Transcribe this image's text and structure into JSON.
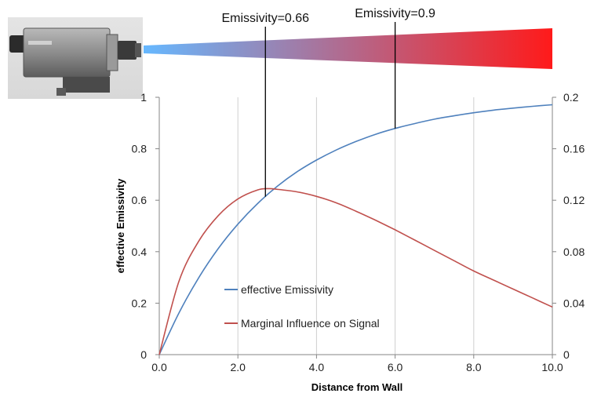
{
  "chart_data": {
    "type": "line",
    "title": "",
    "xlabel": "Distance from Wall",
    "ylabel": "effective Emissivity",
    "y2label": "",
    "xlim": [
      0,
      10
    ],
    "ylim": [
      0,
      1
    ],
    "y2lim": [
      0,
      0.2
    ],
    "x_ticks": [
      "0.0",
      "2.0",
      "4.0",
      "6.0",
      "8.0",
      "10.0"
    ],
    "y_ticks": [
      "0",
      "0.2",
      "0.4",
      "0.6",
      "0.8",
      "1"
    ],
    "y2_ticks": [
      "0",
      "0.04",
      "0.08",
      "0.12",
      "0.16",
      "0.2"
    ],
    "grid": "vertical",
    "legend_position": "center-left",
    "series": [
      {
        "name": "effective Emissivity",
        "axis": "left",
        "color": "#4f81bd",
        "x": [
          0,
          0.5,
          1,
          1.5,
          2,
          2.5,
          3,
          3.5,
          4,
          4.5,
          5,
          5.5,
          6,
          6.5,
          7,
          7.5,
          8,
          8.5,
          9,
          9.5,
          10
        ],
        "y": [
          0,
          0.162,
          0.298,
          0.412,
          0.507,
          0.587,
          0.654,
          0.71,
          0.756,
          0.795,
          0.828,
          0.856,
          0.879,
          0.898,
          0.915,
          0.928,
          0.94,
          0.95,
          0.958,
          0.965,
          0.971
        ]
      },
      {
        "name": "Marginal Influence on Signal",
        "axis": "right",
        "color": "#c0504d",
        "x": [
          0,
          0.5,
          1,
          1.5,
          2,
          2.5,
          2.8,
          3,
          3.5,
          4,
          4.5,
          5,
          5.5,
          6,
          6.5,
          7,
          7.5,
          8,
          8.5,
          9,
          9.5,
          10
        ],
        "y": [
          0,
          0.057,
          0.088,
          0.108,
          0.121,
          0.128,
          0.129,
          0.1285,
          0.1265,
          0.123,
          0.118,
          0.1115,
          0.1045,
          0.097,
          0.089,
          0.081,
          0.073,
          0.065,
          0.058,
          0.051,
          0.044,
          0.037
        ]
      }
    ],
    "annotations": [
      {
        "text": "Emissivity=0.66",
        "x": 2.7
      },
      {
        "text": "Emissivity=0.9",
        "x": 6.0
      }
    ],
    "gradient_bar": {
      "color_start": "#66b8ff",
      "color_end": "#ff1a1a"
    },
    "image": "pyrometer-camera"
  }
}
